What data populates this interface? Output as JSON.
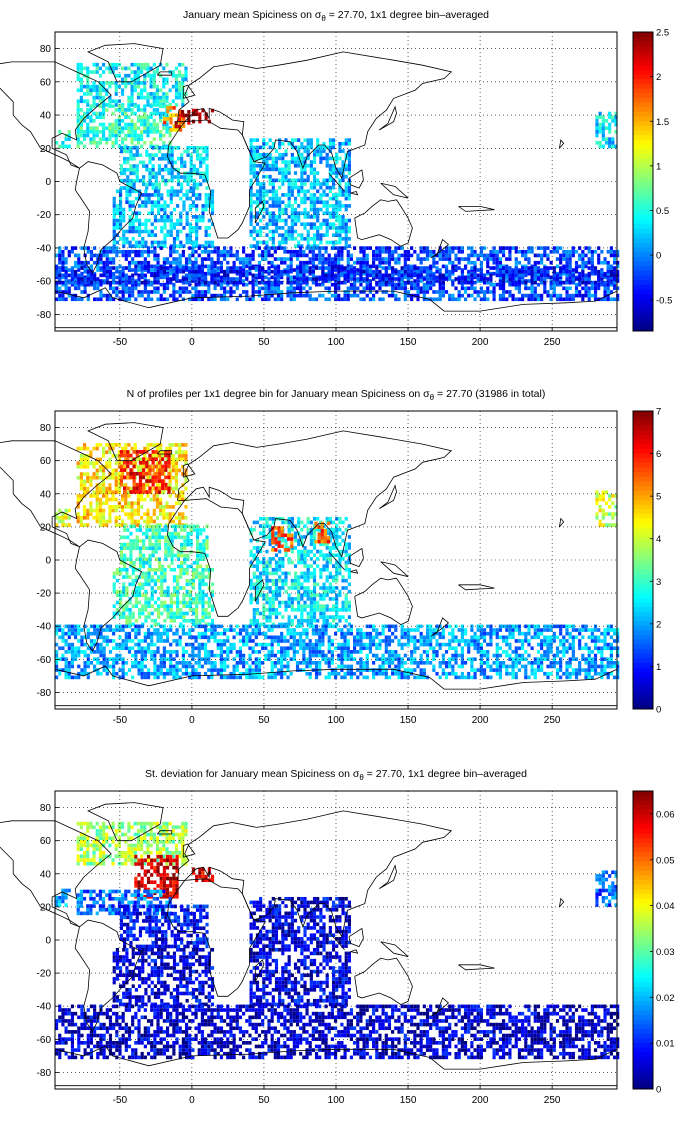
{
  "chart_data": [
    {
      "type": "heatmap",
      "title": "January mean Spiciness on σ",
      "title_sub": "θ",
      "title_rest": " = 27.70, 1x1 degree bin–averaged",
      "x_ticks": [
        "-50",
        "0",
        "50",
        "100",
        "150",
        "200",
        "250"
      ],
      "y_ticks": [
        "80",
        "60",
        "40",
        "20",
        "0",
        "-20",
        "-40",
        "-60",
        "-80"
      ],
      "xlim": [
        -95,
        295
      ],
      "ylim": [
        -90,
        90
      ],
      "grid": true,
      "colorbar": {
        "ticks": [
          "2.5",
          "2",
          "1.5",
          "1",
          "0.5",
          "0",
          "-0.5"
        ],
        "range": [
          -0.85,
          2.5
        ]
      },
      "regions": [
        {
          "x": [
            -95,
            -85
          ],
          "y": [
            20,
            30
          ],
          "v": 0.45
        },
        {
          "x": [
            -80,
            -5
          ],
          "y": [
            45,
            70
          ],
          "v": 0.4
        },
        {
          "x": [
            -80,
            -15
          ],
          "y": [
            20,
            45
          ],
          "v": 0.55
        },
        {
          "x": [
            -20,
            -5
          ],
          "y": [
            30,
            45
          ],
          "v": 1.6
        },
        {
          "x": [
            -12,
            -3
          ],
          "y": [
            32,
            42
          ],
          "v": 2.3
        },
        {
          "x": [
            0,
            15
          ],
          "y": [
            35,
            42
          ],
          "v": 2.4
        },
        {
          "x": [
            -50,
            10
          ],
          "y": [
            -5,
            20
          ],
          "v": 0.3
        },
        {
          "x": [
            -55,
            15
          ],
          "y": [
            -40,
            -5
          ],
          "v": 0.15
        },
        {
          "x": [
            40,
            110
          ],
          "y": [
            -40,
            25
          ],
          "v": 0.2
        },
        {
          "x": [
            -95,
            295
          ],
          "y": [
            -72,
            -40
          ],
          "v": -0.2
        },
        {
          "x": [
            -95,
            295
          ],
          "y": [
            -62,
            -52
          ],
          "v": -0.35
        },
        {
          "x": [
            280,
            295
          ],
          "y": [
            20,
            40
          ],
          "v": 0.35
        }
      ]
    },
    {
      "type": "heatmap",
      "title": "N of profiles per 1x1 degree bin for January mean Spiciness on σ",
      "title_sub": "θ",
      "title_rest": " = 27.70 (31986 in total)",
      "x_ticks": [
        "-50",
        "0",
        "50",
        "100",
        "150",
        "200",
        "250"
      ],
      "y_ticks": [
        "80",
        "60",
        "40",
        "20",
        "0",
        "-20",
        "-40",
        "-60",
        "-80"
      ],
      "xlim": [
        -95,
        295
      ],
      "ylim": [
        -90,
        90
      ],
      "grid": true,
      "colorbar": {
        "ticks": [
          "7",
          "6",
          "5",
          "4",
          "3",
          "2",
          "1",
          "0"
        ],
        "range": [
          0,
          7
        ]
      },
      "regions": [
        {
          "x": [
            -95,
            -85
          ],
          "y": [
            20,
            30
          ],
          "v": 4
        },
        {
          "x": [
            -80,
            -5
          ],
          "y": [
            20,
            70
          ],
          "v": 4.5
        },
        {
          "x": [
            -50,
            -15
          ],
          "y": [
            40,
            65
          ],
          "v": 6
        },
        {
          "x": [
            -50,
            10
          ],
          "y": [
            -5,
            20
          ],
          "v": 3
        },
        {
          "x": [
            -55,
            15
          ],
          "y": [
            -40,
            -5
          ],
          "v": 3
        },
        {
          "x": [
            40,
            110
          ],
          "y": [
            -40,
            25
          ],
          "v": 2.5
        },
        {
          "x": [
            55,
            70
          ],
          "y": [
            5,
            20
          ],
          "v": 5.5
        },
        {
          "x": [
            85,
            95
          ],
          "y": [
            10,
            22
          ],
          "v": 5.5
        },
        {
          "x": [
            -95,
            295
          ],
          "y": [
            -72,
            -40
          ],
          "v": 2
        },
        {
          "x": [
            280,
            295
          ],
          "y": [
            20,
            40
          ],
          "v": 4
        }
      ]
    },
    {
      "type": "heatmap",
      "title": "St. deviation for January mean Spiciness on σ",
      "title_sub": "θ",
      "title_rest": " = 27.70, 1x1 degree bin–averaged",
      "x_ticks": [
        "-50",
        "0",
        "50",
        "100",
        "150",
        "200",
        "250"
      ],
      "y_ticks": [
        "80",
        "60",
        "40",
        "20",
        "0",
        "-20",
        "-40",
        "-60",
        "-80"
      ],
      "xlim": [
        -95,
        295
      ],
      "ylim": [
        -90,
        90
      ],
      "grid": true,
      "colorbar": {
        "ticks": [
          "0.06",
          "0.05",
          "0.04",
          "0.03",
          "0.02",
          "0.01",
          "0"
        ],
        "range": [
          0,
          0.065
        ]
      },
      "regions": [
        {
          "x": [
            -95,
            -85
          ],
          "y": [
            20,
            30
          ],
          "v": 0.02
        },
        {
          "x": [
            -80,
            -5
          ],
          "y": [
            45,
            70
          ],
          "v": 0.035
        },
        {
          "x": [
            -40,
            -10
          ],
          "y": [
            25,
            50
          ],
          "v": 0.06
        },
        {
          "x": [
            0,
            15
          ],
          "y": [
            35,
            42
          ],
          "v": 0.06
        },
        {
          "x": [
            -80,
            -15
          ],
          "y": [
            15,
            30
          ],
          "v": 0.015
        },
        {
          "x": [
            -50,
            10
          ],
          "y": [
            -5,
            20
          ],
          "v": 0.008
        },
        {
          "x": [
            -55,
            15
          ],
          "y": [
            -40,
            -5
          ],
          "v": 0.006
        },
        {
          "x": [
            40,
            110
          ],
          "y": [
            -40,
            25
          ],
          "v": 0.006
        },
        {
          "x": [
            -95,
            295
          ],
          "y": [
            -72,
            -40
          ],
          "v": 0.005
        },
        {
          "x": [
            280,
            295
          ],
          "y": [
            20,
            40
          ],
          "v": 0.015
        }
      ]
    }
  ]
}
